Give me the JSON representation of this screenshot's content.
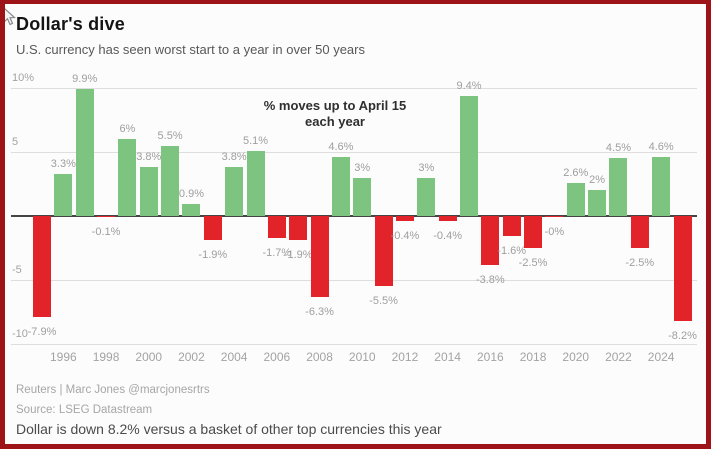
{
  "header": {
    "title": "Dollar's dive",
    "subtitle": "U.S. currency has seen worst start to a year in over 50 years"
  },
  "annotation": {
    "line1": "% moves up to April 15",
    "line2": "each year"
  },
  "chart_data": {
    "type": "bar",
    "title": "Dollar's dive",
    "subtitle": "U.S. currency has seen worst start to a year in over 50 years",
    "annotation": "% moves up to April 15 each year",
    "x": [
      1995,
      1996,
      1997,
      1998,
      1999,
      2000,
      2001,
      2002,
      2003,
      2004,
      2005,
      2006,
      2007,
      2008,
      2009,
      2010,
      2011,
      2012,
      2013,
      2014,
      2015,
      2016,
      2017,
      2018,
      2019,
      2020,
      2021,
      2022,
      2023,
      2024,
      2025
    ],
    "values": [
      -7.9,
      3.3,
      9.9,
      -0.1,
      6,
      3.8,
      5.5,
      0.9,
      -1.9,
      3.8,
      5.1,
      -1.7,
      -1.9,
      -6.3,
      4.6,
      3,
      -5.5,
      -0.4,
      3,
      -0.4,
      9.4,
      -3.8,
      -1.6,
      -2.5,
      -0.05,
      2.6,
      2,
      4.5,
      -2.5,
      4.6,
      -8.2
    ],
    "labels": [
      "-7.9%",
      "3.3%",
      "9.9%",
      "-0.1%",
      "6%",
      "3.8%",
      "5.5%",
      "0.9%",
      "-1.9%",
      "3.8%",
      "5.1%",
      "-1.7%",
      "-1.9%",
      "-6.3%",
      "4.6%",
      "3%",
      "-5.5%",
      "-0.4%",
      "3%",
      "-0.4%",
      "9.4%",
      "-3.8%",
      "-1.6%",
      "-2.5%",
      "-0%",
      "2.6%",
      "2%",
      "4.5%",
      "-2.5%",
      "4.6%",
      "-8.2%"
    ],
    "x_tick_labels": [
      "1996",
      "1998",
      "2000",
      "2002",
      "2004",
      "2006",
      "2008",
      "2010",
      "2012",
      "2014",
      "2016",
      "2018",
      "2020",
      "2022",
      "2024"
    ],
    "y_ticks": [
      {
        "text": "10%",
        "value": 10
      },
      {
        "text": "5",
        "value": 5
      },
      {
        "text": "-5",
        "value": -5
      },
      {
        "text": "-10",
        "value": -10
      }
    ],
    "ylim": [
      -10,
      10
    ],
    "grid": "horizontal",
    "legend": "none",
    "colors": {
      "positive": "#7cc47f",
      "negative": "#e2242a",
      "frame_border": "#9e1318"
    }
  },
  "footer": {
    "credit": "Reuters | Marc Jones @marcjonesrtrs",
    "source": "Source: LSEG Datastream",
    "note": "Dollar is down 8.2% versus a basket of other top currencies this year"
  }
}
